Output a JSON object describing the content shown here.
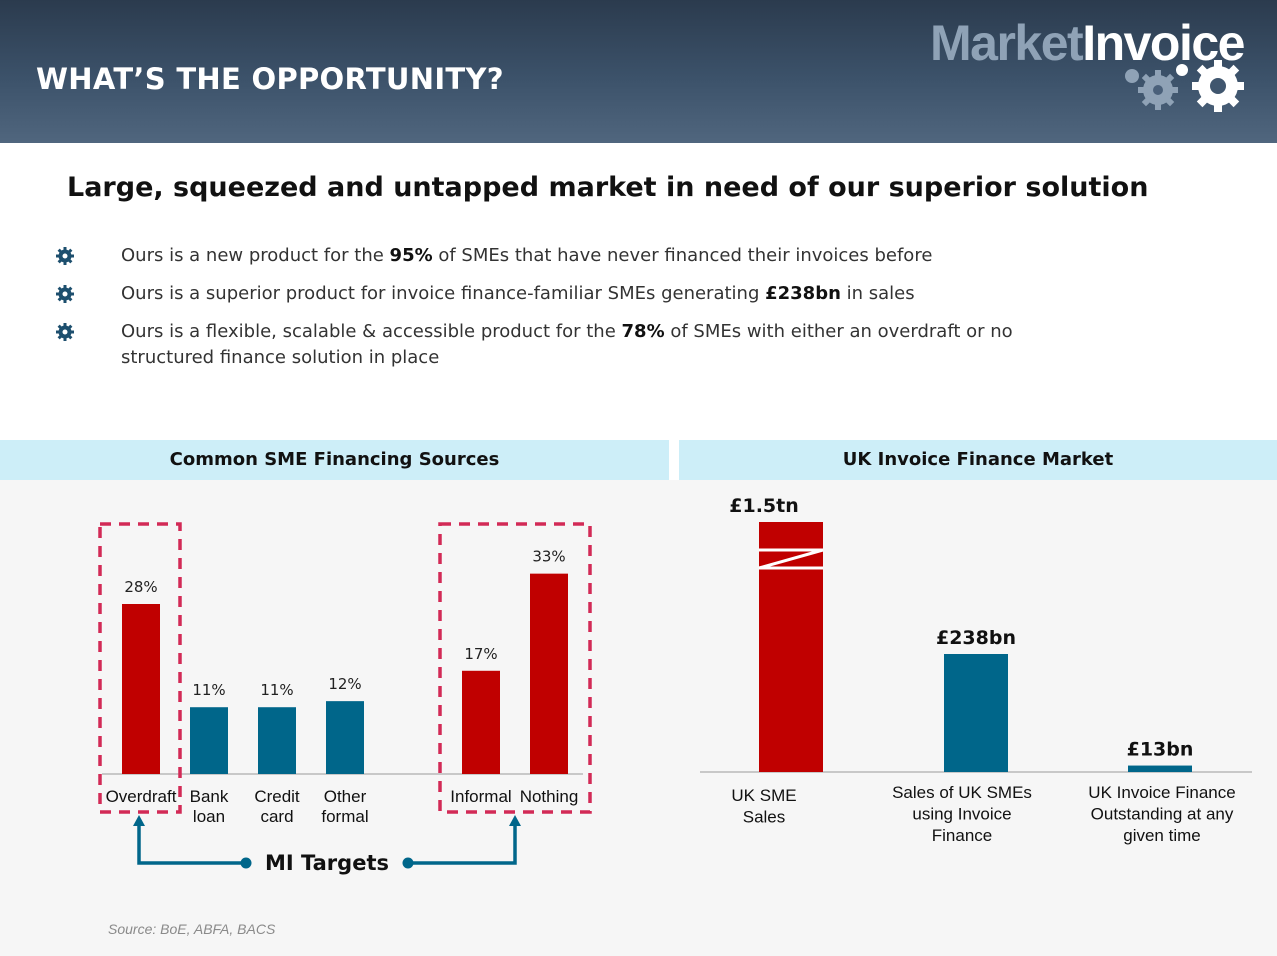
{
  "header": {
    "title": "WHAT’S THE OPPORTUNITY?"
  },
  "logo": {
    "part1": "Market",
    "part2": "Invoice"
  },
  "subtitle": "Large, squeezed and untapped market in need of our superior solution",
  "bullets": [
    {
      "pre": "Ours is a new product for the ",
      "bold": "95%",
      "post": " of SMEs that have never financed their invoices before"
    },
    {
      "pre": "Ours is a superior product for invoice finance-familiar SMEs generating ",
      "bold": "£238bn",
      "post": " in sales"
    },
    {
      "pre": "Ours is a flexible, scalable & accessible product for the ",
      "bold": "78%",
      "post": " of SMEs with either an overdraft or no structured finance solution in place"
    }
  ],
  "colors": {
    "red": "#c00000",
    "blue": "#00668a",
    "dash": "#d22a56",
    "header_band": "#cdeef8"
  },
  "chart_data": [
    {
      "type": "bar",
      "title": "Common SME Financing Sources",
      "categories": [
        "Overdraft",
        "Bank loan",
        "Credit card",
        "Other formal",
        "Informal",
        "Nothing"
      ],
      "category_lines": [
        [
          "Overdraft"
        ],
        [
          "Bank",
          "loan"
        ],
        [
          "Credit",
          "card"
        ],
        [
          "Other",
          "formal"
        ],
        [
          "Informal"
        ],
        [
          "Nothing"
        ]
      ],
      "values": [
        28,
        11,
        11,
        12,
        17,
        33
      ],
      "value_labels": [
        "28%",
        "11%",
        "11%",
        "12%",
        "17%",
        "33%"
      ],
      "bar_colors": [
        "#c00000",
        "#00668a",
        "#00668a",
        "#00668a",
        "#c00000",
        "#c00000"
      ],
      "highlighted": [
        "Overdraft",
        "Informal",
        "Nothing"
      ],
      "annotation": "MI Targets",
      "ylim": [
        0,
        35
      ]
    },
    {
      "type": "bar",
      "title": "UK Invoice Finance Market",
      "categories": [
        "UK SME Sales",
        "Sales of UK SMEs using Invoice Finance",
        "UK Invoice Finance Outstanding at any given time"
      ],
      "category_lines": [
        [
          "UK SME",
          "Sales"
        ],
        [
          "Sales of UK SMEs",
          "using Invoice",
          "Finance"
        ],
        [
          "UK Invoice Finance",
          "Outstanding at any",
          "given time"
        ]
      ],
      "values": [
        1500,
        238,
        13
      ],
      "unit": "£bn",
      "value_labels": [
        "£1.5tn",
        "£238bn",
        "£13bn"
      ],
      "bar_colors": [
        "#c00000",
        "#00668a",
        "#00668a"
      ],
      "broken_axis_first_bar": true
    }
  ],
  "source": "Source: BoE, ABFA, BACS"
}
